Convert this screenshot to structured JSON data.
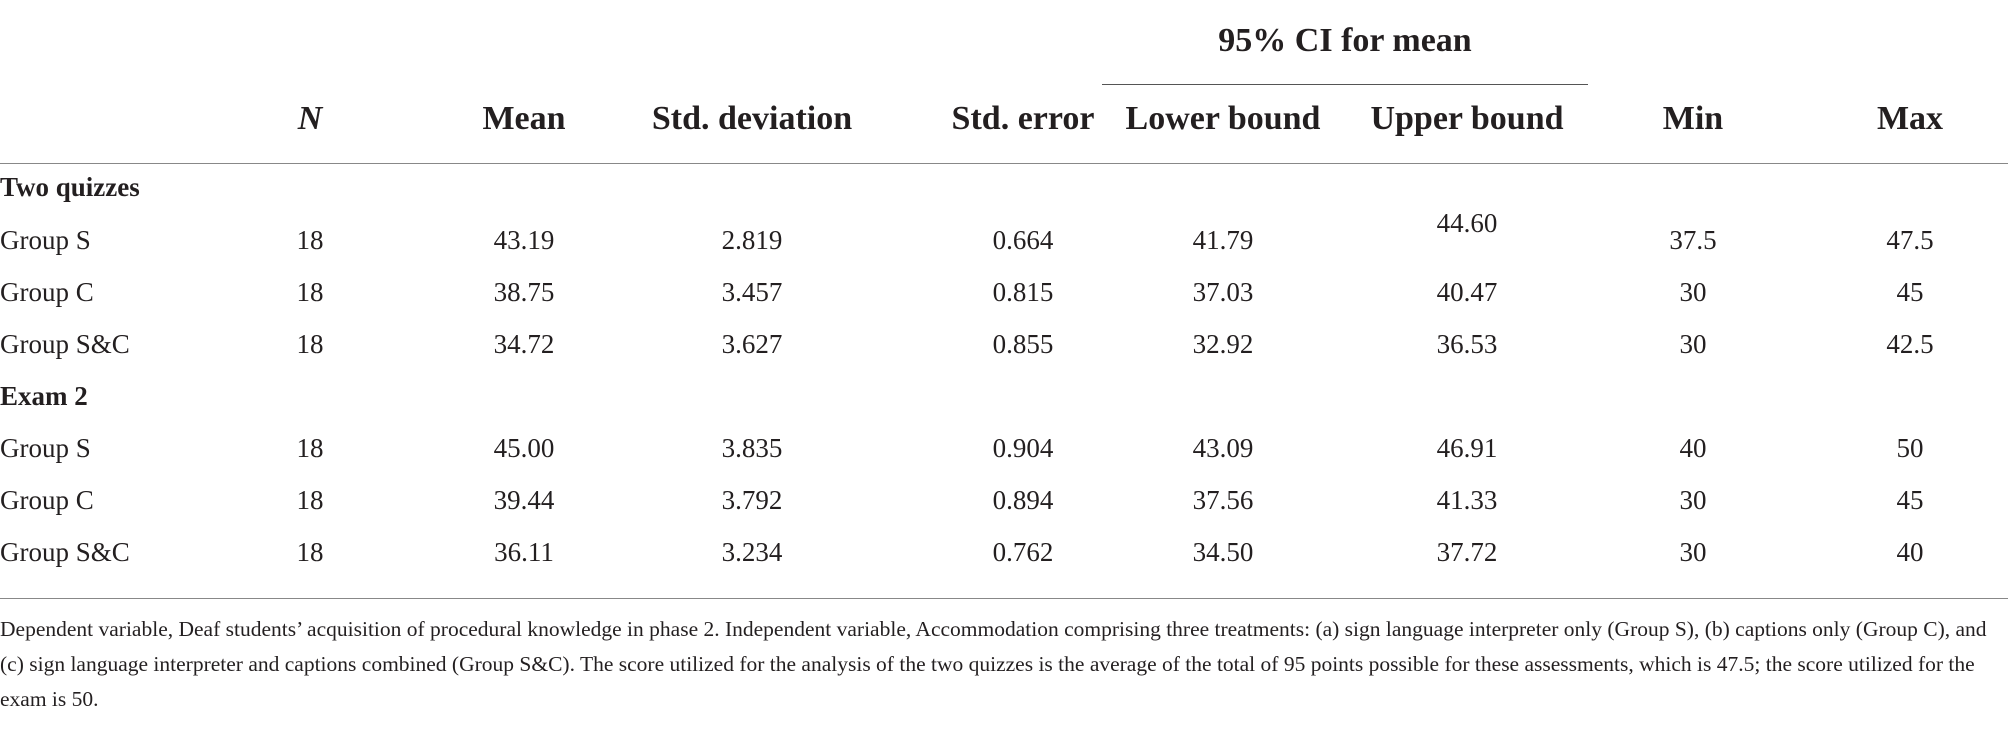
{
  "table": {
    "group_header": "95% CI for mean",
    "columns": [
      "N",
      "Mean",
      "Std. deviation",
      "Std. error",
      "Lower bound",
      "Upper bound",
      "Min",
      "Max"
    ],
    "sections": [
      {
        "title": "Two quizzes",
        "rows": [
          {
            "label": "Group S",
            "values": [
              "18",
              "43.19",
              "2.819",
              "0.664",
              "41.79",
              "44.60",
              "37.5",
              "47.5"
            ]
          },
          {
            "label": "Group C",
            "values": [
              "18",
              "38.75",
              "3.457",
              "0.815",
              "37.03",
              "40.47",
              "30",
              "45"
            ]
          },
          {
            "label": "Group S&C",
            "values": [
              "18",
              "34.72",
              "3.627",
              "0.855",
              "32.92",
              "36.53",
              "30",
              "42.5"
            ]
          }
        ]
      },
      {
        "title": "Exam 2",
        "rows": [
          {
            "label": "Group S",
            "values": [
              "18",
              "45.00",
              "3.835",
              "0.904",
              "43.09",
              "46.91",
              "40",
              "50"
            ]
          },
          {
            "label": "Group C",
            "values": [
              "18",
              "39.44",
              "3.792",
              "0.894",
              "37.56",
              "41.33",
              "30",
              "45"
            ]
          },
          {
            "label": "Group S&C",
            "values": [
              "18",
              "36.11",
              "3.234",
              "0.762",
              "34.50",
              "37.72",
              "30",
              "40"
            ]
          }
        ]
      }
    ],
    "footnote": "Dependent variable, Deaf students’ acquisition of procedural knowledge in phase 2. Independent variable, Accommodation comprising three treatments: (a) sign language interpreter only (Group S), (b) captions only (Group C), and (c) sign language interpreter and captions combined (Group S&C). The score utilized for the analysis of the two quizzes is the average of the total of 95 points possible for these assessments, which is 47.5; the score utilized for the exam is 50."
  }
}
